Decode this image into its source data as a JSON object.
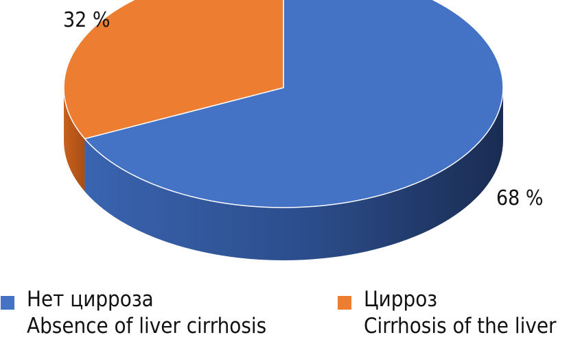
{
  "chart_data": {
    "type": "pie",
    "title": "",
    "categories": [
      "Нет цирроза / Absence of liver cirrhosis",
      "Цирроз / Cirrhosis of the liver"
    ],
    "values": [
      68,
      32
    ],
    "unit": "%",
    "data_labels": [
      "68 %",
      "32 %"
    ],
    "colors": [
      "#4472C4",
      "#ED7D31"
    ],
    "legend_placement": "bottom",
    "legend": [
      {
        "label_ru": "Нет цирроза",
        "label_en": "Absence of liver cirrhosis",
        "color": "#4472C4"
      },
      {
        "label_ru": "Цирроз",
        "label_en": "Cirrhosis of the liver",
        "color": "#ED7D31"
      }
    ],
    "style": "3d"
  }
}
